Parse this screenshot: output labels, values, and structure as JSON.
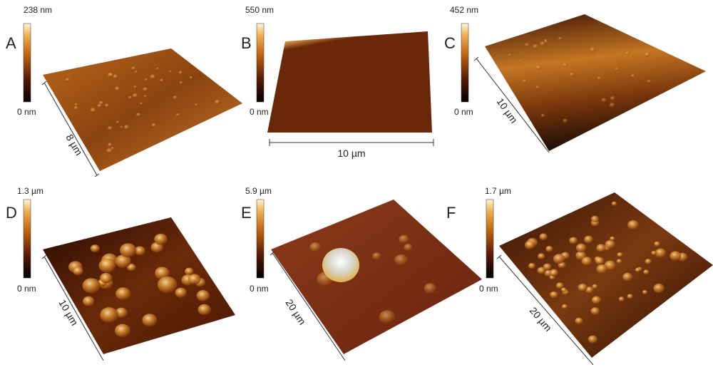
{
  "panels": [
    {
      "label": "A",
      "max": "238 nm",
      "min": "0 nm",
      "size": "8 µm"
    },
    {
      "label": "B",
      "max": "550 nm",
      "min": "0 nm",
      "size": "10 µm"
    },
    {
      "label": "C",
      "max": "452 nm",
      "min": "0 nm",
      "size": "10 µm"
    },
    {
      "label": "D",
      "max": "1.3 µm",
      "min": "0 nm",
      "size": "10 µm"
    },
    {
      "label": "E",
      "max": "5.9 µm",
      "min": "0 nm",
      "size": "20 µm"
    },
    {
      "label": "F",
      "max": "1.7 µm",
      "min": "0 nm",
      "size": "20 µm"
    }
  ]
}
